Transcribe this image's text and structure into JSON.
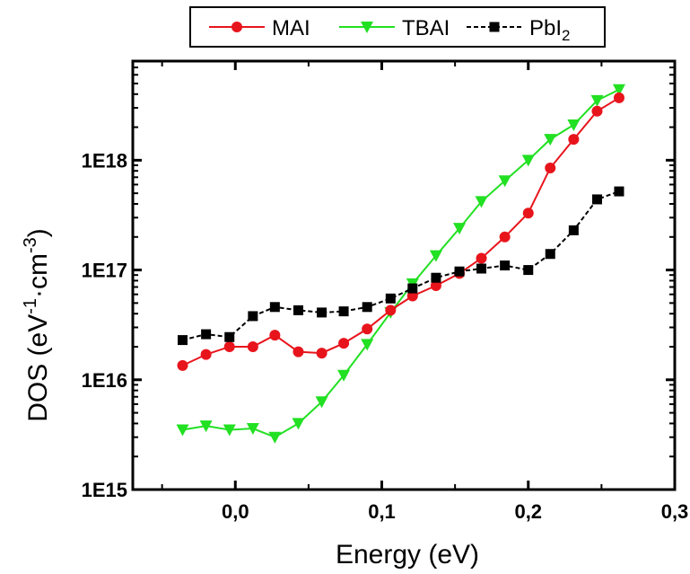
{
  "chart_data": {
    "type": "line",
    "xlabel": "Energy (eV)",
    "ylabel_parts": [
      "DOS (eV",
      "-1",
      "·cm",
      "-3",
      ")"
    ],
    "xlim": [
      -0.07,
      0.3
    ],
    "ylim": [
      1000000000000000.0,
      8e+18
    ],
    "yscale": "log",
    "x_ticks": [
      0.0,
      0.1,
      0.2,
      0.3
    ],
    "x_tick_labels": [
      "0,0",
      "0,1",
      "0,2",
      "0,3"
    ],
    "y_ticks": [
      1000000000000000.0,
      1e+16,
      1e+17,
      1e+18
    ],
    "y_tick_labels": [
      "1E15",
      "1E16",
      "1E17",
      "1E18"
    ],
    "legend": [
      {
        "name": "MAI",
        "subscript": ""
      },
      {
        "name": "TBAI",
        "subscript": ""
      },
      {
        "name": "PbI",
        "subscript": "2"
      }
    ],
    "series": [
      {
        "name": "MAI",
        "color": "#e8141c",
        "marker": "circle",
        "line": "solid",
        "x": [
          -0.036,
          -0.02,
          -0.004,
          0.012,
          0.027,
          0.043,
          0.059,
          0.074,
          0.09,
          0.106,
          0.121,
          0.137,
          0.153,
          0.168,
          0.184,
          0.2,
          0.215,
          0.231,
          0.247,
          0.262
        ],
        "y": [
          1.35e+16,
          1.7e+16,
          2e+16,
          2e+16,
          2.55e+16,
          1.8e+16,
          1.75e+16,
          2.15e+16,
          2.9e+16,
          4.3e+16,
          5.8e+16,
          7.2e+16,
          9.3e+16,
          1.28e+17,
          2e+17,
          3.3e+17,
          8.5e+17,
          1.55e+18,
          2.8e+18,
          3.7e+18
        ]
      },
      {
        "name": "TBAI",
        "color": "#22e022",
        "marker": "triangle-down",
        "line": "solid",
        "x": [
          -0.036,
          -0.02,
          -0.004,
          0.012,
          0.027,
          0.043,
          0.059,
          0.074,
          0.09,
          0.106,
          0.121,
          0.137,
          0.153,
          0.168,
          0.184,
          0.2,
          0.215,
          0.231,
          0.247,
          0.262
        ],
        "y": [
          3500000000000000.0,
          3800000000000000.0,
          3500000000000000.0,
          3600000000000000.0,
          3000000000000000.0,
          4000000000000000.0,
          6300000000000000.0,
          1.1e+16,
          2.1e+16,
          4.1e+16,
          7.5e+16,
          1.35e+17,
          2.4e+17,
          4.2e+17,
          6.5e+17,
          1e+18,
          1.55e+18,
          2.1e+18,
          3.5e+18,
          4.4e+18
        ]
      },
      {
        "name": "PbI2",
        "color": "#000000",
        "marker": "square",
        "line": "dashed",
        "x": [
          -0.036,
          -0.02,
          -0.004,
          0.012,
          0.027,
          0.043,
          0.059,
          0.074,
          0.09,
          0.106,
          0.121,
          0.137,
          0.153,
          0.168,
          0.184,
          0.2,
          0.215,
          0.231,
          0.247,
          0.262
        ],
        "y": [
          2.3e+16,
          2.6e+16,
          2.45e+16,
          3.8e+16,
          4.6e+16,
          4.3e+16,
          4.1e+16,
          4.2e+16,
          4.6e+16,
          5.5e+16,
          6.8e+16,
          8.5e+16,
          9.7e+16,
          1.03e+17,
          1.1e+17,
          1e+17,
          1.4e+17,
          2.3e+17,
          4.4e+17,
          5.2e+17
        ]
      }
    ]
  }
}
